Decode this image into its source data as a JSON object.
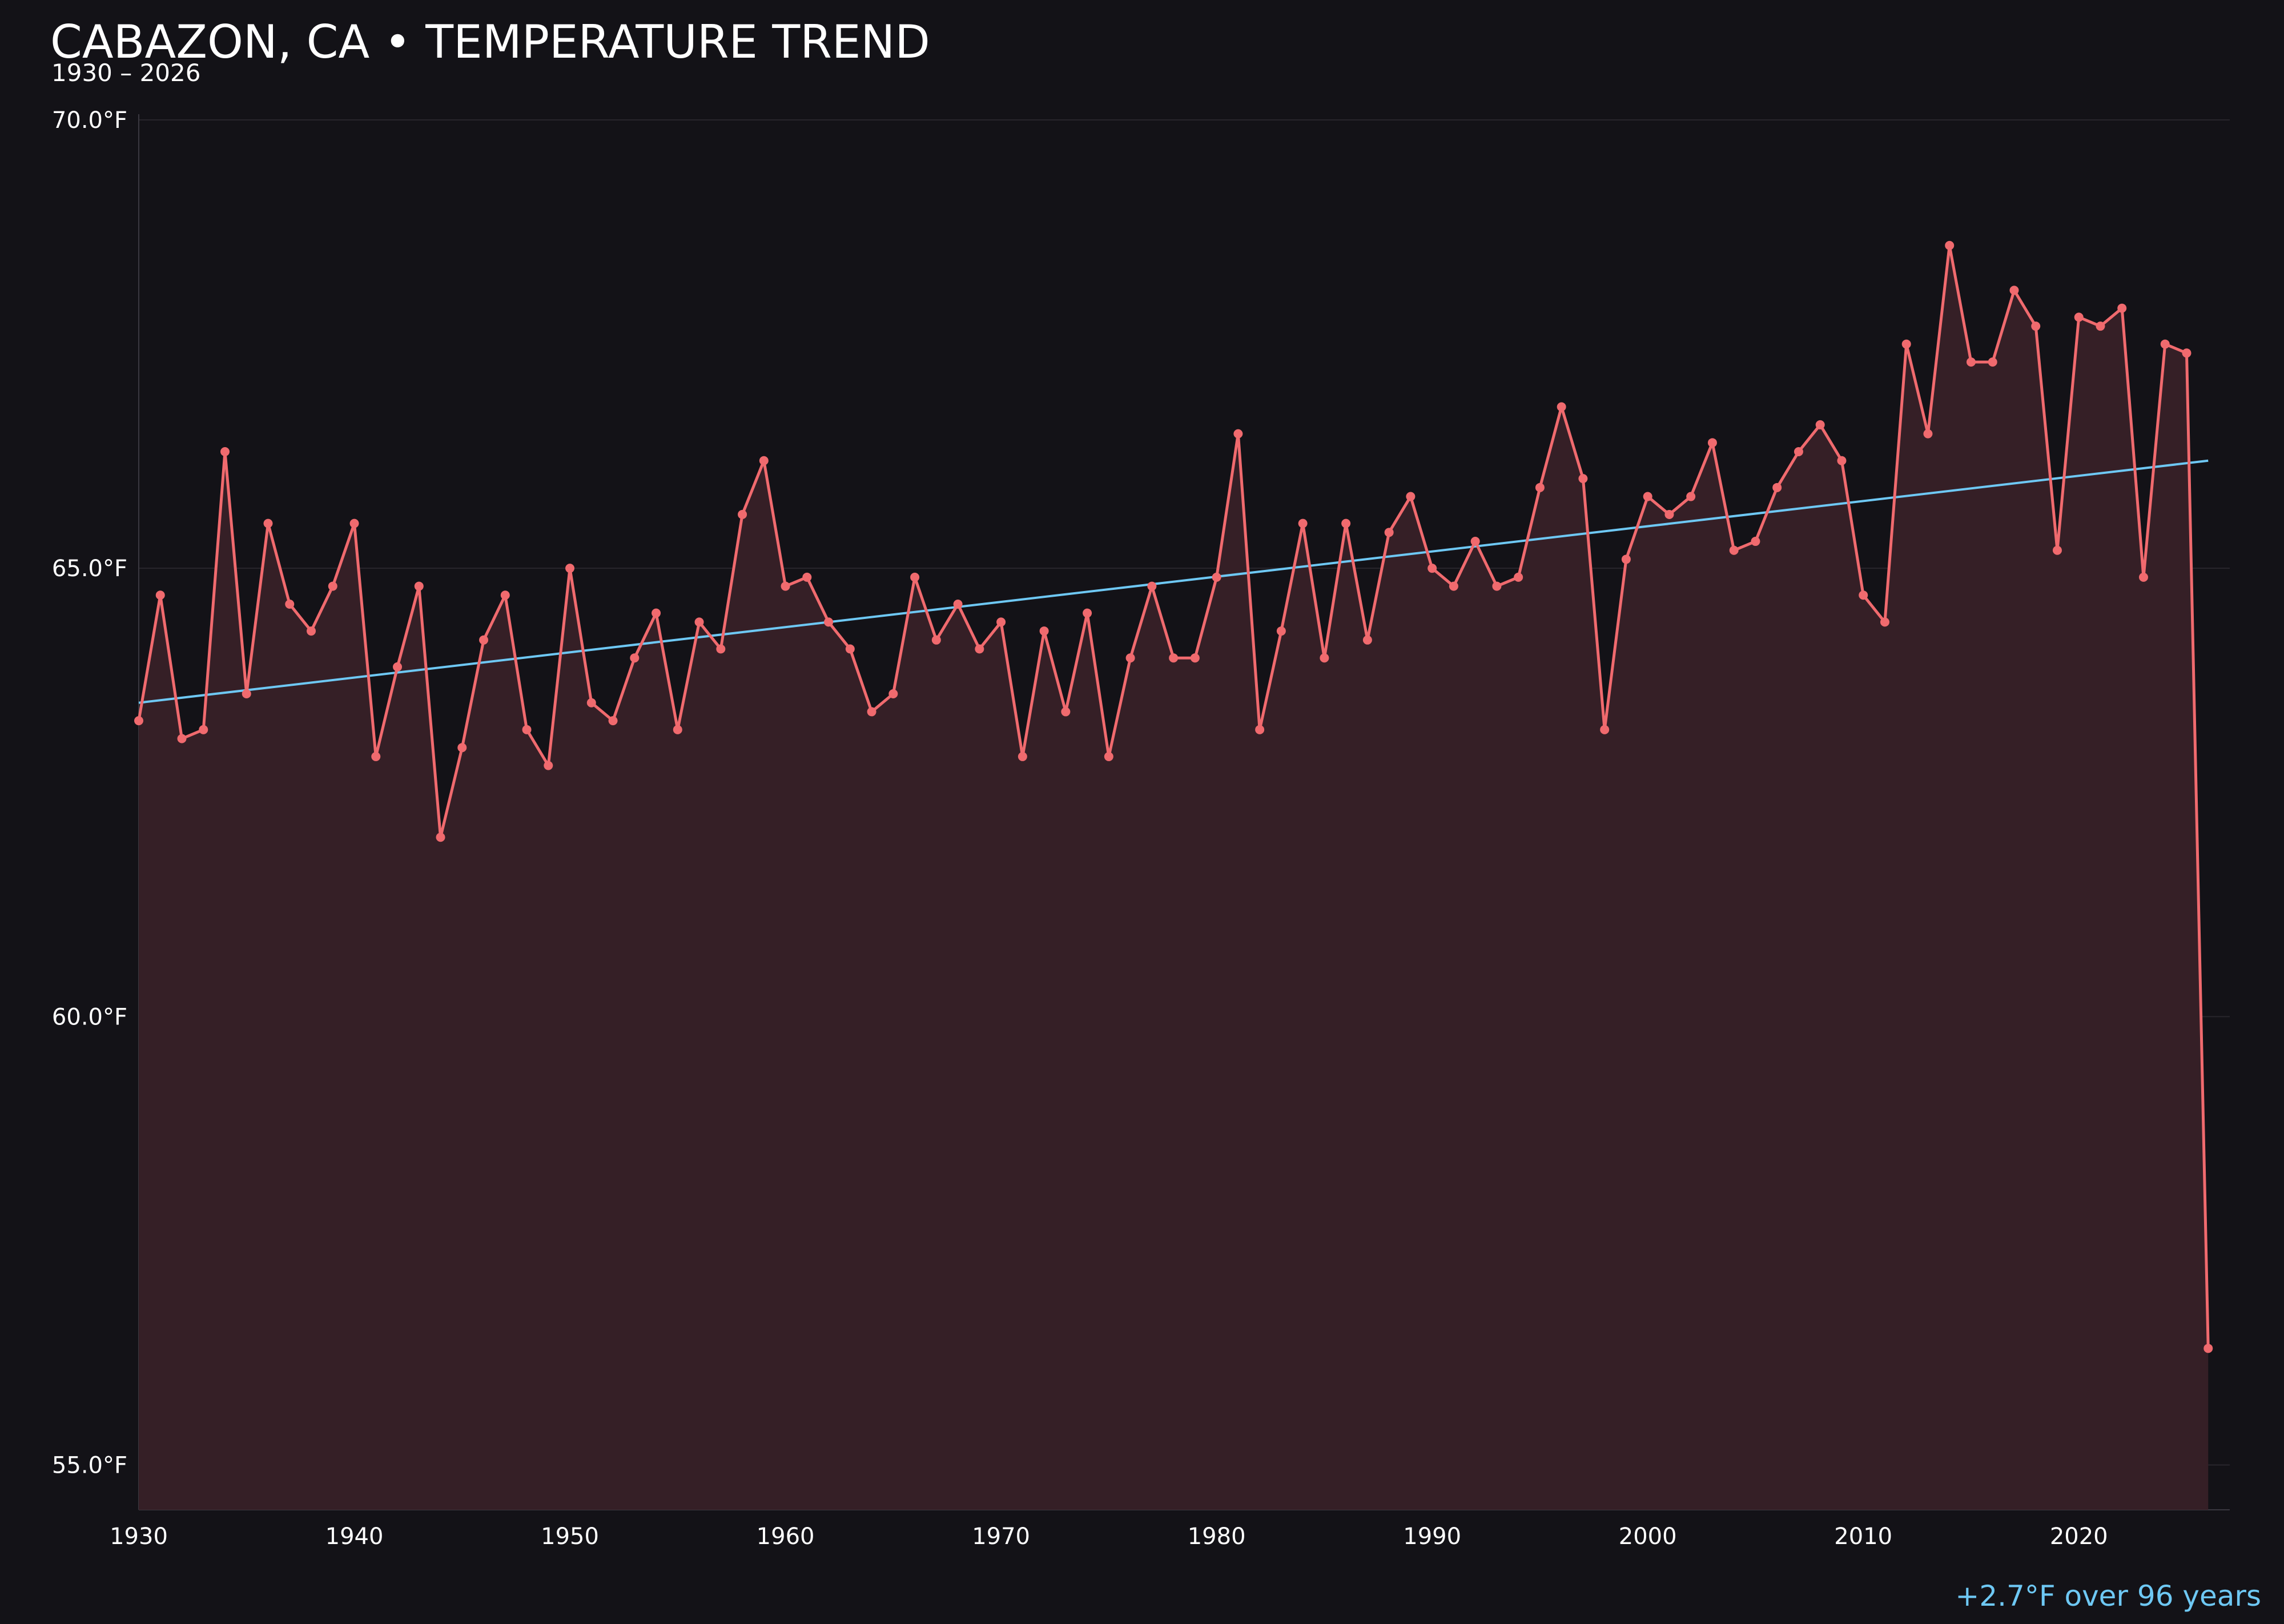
{
  "chart_data": {
    "type": "line",
    "title": "CABAZON, CA • TEMPERATURE TREND",
    "subtitle": "1930 – 2026",
    "annotation": "+2.7°F over 96 years",
    "ylim": [
      54.5,
      70.0
    ],
    "xlim": [
      1930,
      2027
    ],
    "yticks": [
      55.0,
      60.0,
      65.0,
      70.0
    ],
    "ytick_labels": [
      "55.0°F",
      "60.0°F",
      "65.0°F",
      "70.0°F"
    ],
    "xticks": [
      1930,
      1940,
      1950,
      1960,
      1970,
      1980,
      1990,
      2000,
      2010,
      2020
    ],
    "xtick_labels": [
      "1930",
      "1940",
      "1950",
      "1960",
      "1970",
      "1980",
      "1990",
      "2000",
      "2010",
      "2020"
    ],
    "grid": true,
    "area_fill": true,
    "series": [
      {
        "x": [
          1930,
          1931,
          1932,
          1933,
          1934,
          1935,
          1936,
          1937,
          1938,
          1939,
          1940,
          1941,
          1942,
          1943,
          1944,
          1945,
          1946,
          1947,
          1948,
          1949,
          1950,
          1951,
          1952,
          1953,
          1954,
          1955,
          1956,
          1957,
          1958,
          1959,
          1960,
          1961,
          1962,
          1963,
          1964,
          1965,
          1966,
          1967,
          1968,
          1969,
          1970,
          1971,
          1972,
          1973,
          1974,
          1975,
          1976,
          1977,
          1978,
          1979,
          1980,
          1981,
          1982,
          1983,
          1984,
          1985,
          1986,
          1987,
          1988,
          1989,
          1990,
          1991,
          1992,
          1993,
          1994,
          1995,
          1996,
          1997,
          1998,
          1999,
          2000,
          2001,
          2002,
          2003,
          2004,
          2005,
          2006,
          2007,
          2008,
          2009,
          2010,
          2011,
          2012,
          2013,
          2014,
          2015,
          2016,
          2017,
          2018,
          2019,
          2020,
          2021,
          2022,
          2023,
          2024,
          2025,
          2026
        ],
        "values": [
          63.3,
          64.7,
          63.1,
          63.2,
          66.3,
          63.6,
          65.5,
          64.6,
          64.3,
          64.8,
          65.5,
          62.9,
          63.9,
          64.8,
          62.0,
          63.0,
          64.2,
          64.7,
          63.2,
          62.8,
          65.0,
          63.5,
          63.3,
          64.0,
          64.5,
          63.2,
          64.4,
          64.1,
          65.6,
          66.2,
          64.8,
          64.9,
          64.4,
          64.1,
          63.4,
          63.6,
          64.9,
          64.2,
          64.6,
          64.1,
          64.4,
          62.9,
          64.3,
          63.4,
          64.5,
          62.9,
          64.0,
          64.8,
          64.0,
          64.0,
          64.9,
          66.5,
          63.2,
          64.3,
          65.5,
          64.0,
          65.5,
          64.2,
          65.4,
          65.8,
          65.0,
          64.8,
          65.3,
          64.8,
          64.9,
          65.9,
          66.8,
          66.0,
          63.2,
          65.1,
          65.8,
          65.6,
          65.8,
          66.4,
          65.2,
          65.3,
          65.9,
          66.3,
          66.6,
          66.2,
          64.7,
          64.4,
          67.5,
          66.5,
          68.6,
          67.3,
          67.3,
          68.1,
          67.7,
          65.2,
          67.8,
          67.7,
          67.9,
          64.9,
          67.5,
          67.4,
          56.3
        ],
        "color": "#f06a6e"
      },
      {
        "name": "trend",
        "x": [
          1930,
          2026
        ],
        "values": [
          63.5,
          66.2
        ],
        "color": "#6ec8f4"
      }
    ],
    "colors": {
      "background": "#131217",
      "area_fill": "#351f26",
      "grid": "#28262c",
      "axis": "#3a3840",
      "tick_text": "#ffffff"
    }
  }
}
